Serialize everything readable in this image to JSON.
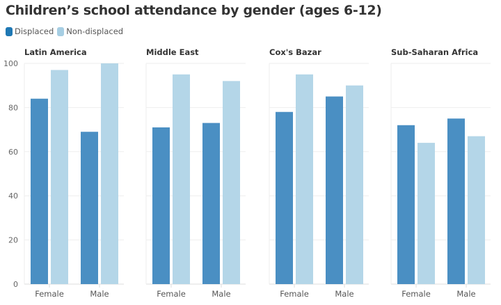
{
  "chart_data": {
    "type": "bar",
    "title": "Children’s school attendance by gender (ages 6-12)",
    "legend": {
      "position": "top-left",
      "entries": [
        {
          "name": "Displaced",
          "color": "#1f78b4"
        },
        {
          "name": "Non-displaced",
          "color": "#a6cee3"
        }
      ]
    },
    "bar_colors": {
      "Displaced": "#4a8fc3",
      "Non-displaced": "#b4d6e8"
    },
    "categories": [
      "Female",
      "Male"
    ],
    "ylim": [
      0,
      100
    ],
    "yticks": [
      "0",
      "20",
      "40",
      "60",
      "80",
      "100"
    ],
    "grid": true,
    "xlabel": "",
    "ylabel": "",
    "panels": [
      {
        "title": "Latin America",
        "series": [
          {
            "name": "Displaced",
            "values": [
              84,
              69
            ]
          },
          {
            "name": "Non-displaced",
            "values": [
              97,
              100
            ]
          }
        ]
      },
      {
        "title": "Middle East",
        "series": [
          {
            "name": "Displaced",
            "values": [
              71,
              73
            ]
          },
          {
            "name": "Non-displaced",
            "values": [
              95,
              92
            ]
          }
        ]
      },
      {
        "title": "Cox's Bazar",
        "series": [
          {
            "name": "Displaced",
            "values": [
              78,
              85
            ]
          },
          {
            "name": "Non-displaced",
            "values": [
              95,
              90
            ]
          }
        ]
      },
      {
        "title": "Sub-Saharan Africa",
        "series": [
          {
            "name": "Displaced",
            "values": [
              72,
              75
            ]
          },
          {
            "name": "Non-displaced",
            "values": [
              64,
              67
            ]
          }
        ]
      }
    ]
  }
}
